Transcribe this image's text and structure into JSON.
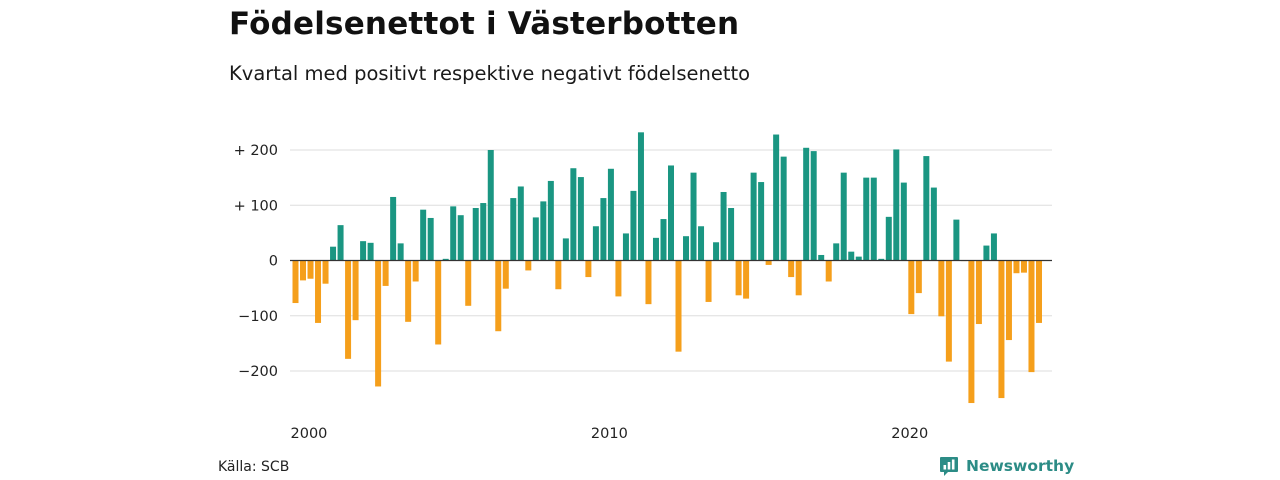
{
  "header": {
    "title": "Födelsenettot i Västerbotten",
    "subtitle": "Kvartal med positivt respektive negativt födelsenetto"
  },
  "footer": {
    "source": "Källa: SCB",
    "brand": "Newsworthy"
  },
  "colors": {
    "positive": "#1a9682",
    "negative": "#f59f1b",
    "grid": "#dddddd",
    "brand": "#2c8c86"
  },
  "chart_data": {
    "type": "bar",
    "x_unit": "quarter",
    "x_start": "2000-Q1",
    "ylim": [
      -265,
      240
    ],
    "y_ticks": [
      {
        "value": 200,
        "label": "+ 200"
      },
      {
        "value": 100,
        "label": "+ 100"
      },
      {
        "value": 0,
        "label": "0"
      },
      {
        "value": -100,
        "label": "−100"
      },
      {
        "value": -200,
        "label": "−200"
      }
    ],
    "x_ticks": [
      {
        "value": 2000,
        "label": "2000"
      },
      {
        "value": 2010,
        "label": "2010"
      },
      {
        "value": 2020,
        "label": "2020"
      }
    ],
    "values": [
      -77,
      -36,
      -33,
      -113,
      -42,
      25,
      64,
      -178,
      -108,
      35,
      32,
      -228,
      -46,
      115,
      31,
      -111,
      -38,
      92,
      77,
      -152,
      3,
      98,
      82,
      -82,
      95,
      104,
      200,
      -128,
      -51,
      113,
      134,
      -18,
      78,
      107,
      144,
      -52,
      40,
      167,
      151,
      -30,
      62,
      113,
      166,
      -65,
      49,
      126,
      232,
      -79,
      41,
      75,
      172,
      -165,
      44,
      159,
      62,
      -75,
      33,
      124,
      95,
      -63,
      -69,
      159,
      142,
      -8,
      228,
      188,
      -30,
      -63,
      204,
      198,
      10,
      -38,
      31,
      159,
      16,
      7,
      150,
      150,
      3,
      79,
      201,
      141,
      -97,
      -59,
      189,
      132,
      -101,
      -183,
      74,
      -1,
      -258,
      -115,
      27,
      49,
      -249,
      -144,
      -23,
      -22,
      -202,
      -113
    ]
  }
}
